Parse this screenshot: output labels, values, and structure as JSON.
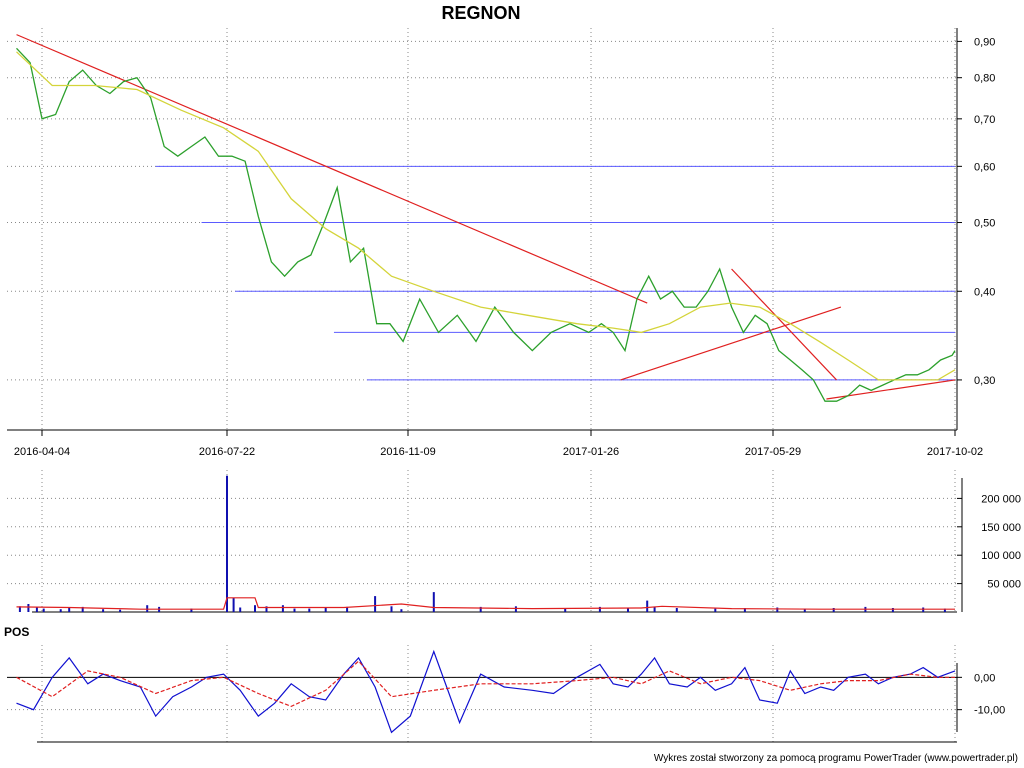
{
  "chart_data": [
    {
      "type": "line",
      "title": "REGNON",
      "scale": "log",
      "x_ticks": [
        "2016-04-04",
        "2016-07-22",
        "2016-11-09",
        "2017-01-26",
        "2017-05-29",
        "2017-10-02"
      ],
      "y_ticks": [
        {
          "value": 0.9,
          "label": "0,90"
        },
        {
          "value": 0.8,
          "label": "0,80"
        },
        {
          "value": 0.7,
          "label": "0,70"
        },
        {
          "value": 0.6,
          "label": "0,60"
        },
        {
          "value": 0.5,
          "label": "0,50"
        },
        {
          "value": 0.4,
          "label": "0,40"
        },
        {
          "value": 0.3,
          "label": "0,30"
        }
      ],
      "ylim": [
        0.255,
        0.94
      ],
      "grid": true,
      "series": [
        {
          "name": "",
          "role": "price",
          "color": "#2ca02c",
          "x": [
            "2016-03-20",
            "2016-03-28",
            "2016-04-04",
            "2016-04-12",
            "2016-04-20",
            "2016-04-28",
            "2016-05-06",
            "2016-05-14",
            "2016-05-22",
            "2016-05-30",
            "2016-06-07",
            "2016-06-15",
            "2016-06-23",
            "2016-07-01",
            "2016-07-09",
            "2016-07-17",
            "2016-07-25",
            "2016-08-02",
            "2016-08-10",
            "2016-08-18",
            "2016-08-26",
            "2016-09-03",
            "2016-09-11",
            "2016-09-19",
            "2016-09-27",
            "2016-10-05",
            "2016-10-13",
            "2016-10-21",
            "2016-10-29",
            "2016-11-06",
            "2016-11-14",
            "2016-11-22",
            "2016-11-30",
            "2016-12-08",
            "2016-12-16",
            "2016-12-24",
            "2017-01-01",
            "2017-01-09",
            "2017-01-17",
            "2017-01-25",
            "2017-02-02",
            "2017-02-10",
            "2017-02-18",
            "2017-02-26",
            "2017-03-06",
            "2017-03-14",
            "2017-03-22",
            "2017-03-30",
            "2017-04-07",
            "2017-04-15",
            "2017-04-23",
            "2017-05-01",
            "2017-05-09",
            "2017-05-17",
            "2017-05-25",
            "2017-06-02",
            "2017-06-10",
            "2017-06-18",
            "2017-06-26",
            "2017-07-04",
            "2017-07-12",
            "2017-07-20",
            "2017-07-28",
            "2017-08-05",
            "2017-08-13",
            "2017-08-21",
            "2017-08-29",
            "2017-09-06",
            "2017-09-14",
            "2017-09-22",
            "2017-09-30",
            "2017-10-02"
          ],
          "values": [
            0.88,
            0.84,
            0.7,
            0.71,
            0.79,
            0.82,
            0.78,
            0.76,
            0.79,
            0.8,
            0.75,
            0.64,
            0.62,
            0.64,
            0.66,
            0.62,
            0.62,
            0.61,
            0.51,
            0.44,
            0.42,
            0.44,
            0.45,
            0.5,
            0.56,
            0.44,
            0.46,
            0.36,
            0.36,
            0.34,
            0.39,
            0.35,
            0.37,
            0.34,
            0.38,
            0.35,
            0.33,
            0.35,
            0.36,
            0.35,
            0.36,
            0.35,
            0.33,
            0.39,
            0.42,
            0.39,
            0.4,
            0.38,
            0.38,
            0.4,
            0.43,
            0.38,
            0.35,
            0.37,
            0.36,
            0.33,
            0.32,
            0.31,
            0.3,
            0.28,
            0.28,
            0.285,
            0.295,
            0.29,
            0.295,
            0.3,
            0.305,
            0.305,
            0.31,
            0.32,
            0.325,
            0.33
          ]
        },
        {
          "name": "",
          "role": "moving-average",
          "color": "#d4d43a",
          "x": [
            "2016-03-20",
            "2016-04-10",
            "2016-05-05",
            "2016-05-30",
            "2016-06-25",
            "2016-07-20",
            "2016-08-10",
            "2016-08-30",
            "2016-09-20",
            "2016-10-10",
            "2016-10-30",
            "2016-11-20",
            "2016-12-10",
            "2016-12-30",
            "2017-01-20",
            "2017-02-10",
            "2017-03-01",
            "2017-03-20",
            "2017-04-10",
            "2017-04-30",
            "2017-05-20",
            "2017-06-10",
            "2017-06-30",
            "2017-07-20",
            "2017-08-10",
            "2017-08-30",
            "2017-09-20",
            "2017-10-02"
          ],
          "values": [
            0.87,
            0.78,
            0.78,
            0.77,
            0.72,
            0.68,
            0.63,
            0.54,
            0.49,
            0.46,
            0.42,
            0.4,
            0.38,
            0.37,
            0.36,
            0.355,
            0.35,
            0.36,
            0.38,
            0.385,
            0.38,
            0.36,
            0.34,
            0.32,
            0.3,
            0.3,
            0.3,
            0.31
          ]
        }
      ],
      "support_lines": [
        {
          "value": 0.6,
          "from": "2016-06-10",
          "to": "2017-10-02"
        },
        {
          "value": 0.5,
          "from": "2016-07-07",
          "to": "2017-10-02"
        },
        {
          "value": 0.4,
          "from": "2016-07-27",
          "to": "2017-10-02"
        },
        {
          "value": 0.35,
          "from": "2016-09-25",
          "to": "2017-10-02"
        },
        {
          "value": 0.3,
          "from": "2016-10-15",
          "to": "2017-10-02"
        }
      ],
      "trend_lines": [
        {
          "from": [
            "2016-03-20",
            0.92
          ],
          "to": [
            "2017-03-05",
            0.385
          ]
        },
        {
          "from": [
            "2017-02-15",
            0.3
          ],
          "to": [
            "2017-07-15",
            0.38
          ]
        },
        {
          "from": [
            "2017-05-01",
            0.43
          ],
          "to": [
            "2017-07-12",
            0.3
          ]
        },
        {
          "from": [
            "2017-07-05",
            0.282
          ],
          "to": [
            "2017-10-02",
            0.3
          ]
        }
      ]
    },
    {
      "type": "bar",
      "role": "volume",
      "y_ticks": [
        {
          "value": 50000,
          "label": "50 000"
        },
        {
          "value": 100000,
          "label": "100 000"
        },
        {
          "value": 150000,
          "label": "150 000"
        },
        {
          "value": 200000,
          "label": "200 000"
        }
      ],
      "ylim": [
        0,
        250000
      ],
      "series": [
        {
          "name": "",
          "color": "#1010b0",
          "x": [
            "2016-03-22",
            "2016-03-27",
            "2016-04-01",
            "2016-04-05",
            "2016-04-15",
            "2016-04-20",
            "2016-04-28",
            "2016-05-10",
            "2016-05-20",
            "2016-06-05",
            "2016-06-12",
            "2016-07-01",
            "2016-07-22",
            "2016-07-26",
            "2016-07-30",
            "2016-08-08",
            "2016-08-15",
            "2016-08-25",
            "2016-09-01",
            "2016-09-10",
            "2016-09-20",
            "2016-10-03",
            "2016-10-20",
            "2016-10-30",
            "2016-11-05",
            "2016-11-20",
            "2016-12-10",
            "2016-12-25",
            "2017-01-15",
            "2017-02-01",
            "2017-02-20",
            "2017-03-05",
            "2017-03-10",
            "2017-03-25",
            "2017-04-20",
            "2017-05-10",
            "2017-06-01",
            "2017-06-20",
            "2017-07-10",
            "2017-08-01",
            "2017-08-20",
            "2017-09-10",
            "2017-09-25"
          ],
          "values": [
            10000,
            14000,
            8000,
            6000,
            5000,
            7000,
            9000,
            5000,
            4000,
            12000,
            9000,
            6000,
            240000,
            25000,
            8000,
            12000,
            10000,
            12000,
            6000,
            6000,
            8000,
            9000,
            28000,
            10000,
            5000,
            35000,
            9000,
            10000,
            7000,
            9000,
            7000,
            20000,
            9000,
            7000,
            6000,
            7000,
            8000,
            6000,
            7000,
            9000,
            7000,
            8000,
            6000
          ]
        },
        {
          "name": "",
          "role": "volume-average",
          "color": "#e02020",
          "x": [
            "2016-03-20",
            "2016-04-20",
            "2016-06-01",
            "2016-07-20",
            "2016-07-22",
            "2016-08-08",
            "2016-08-10",
            "2016-10-01",
            "2016-11-05",
            "2016-11-20",
            "2017-01-01",
            "2017-03-01",
            "2017-03-15",
            "2017-05-01",
            "2017-07-01",
            "2017-10-02"
          ],
          "values": [
            9000,
            8000,
            5000,
            5000,
            25000,
            25000,
            8000,
            8000,
            14000,
            8000,
            6000,
            7000,
            10000,
            6000,
            5000,
            5000
          ]
        }
      ]
    },
    {
      "type": "line",
      "role": "oscillator",
      "panel_label": "POS",
      "y_ticks": [
        {
          "value": 0,
          "label": "0,00"
        },
        {
          "value": -10,
          "label": "-10,00"
        }
      ],
      "ylim": [
        -20,
        10
      ],
      "series": [
        {
          "name": "",
          "color": "#1010d0",
          "x": [
            "2016-03-20",
            "2016-03-30",
            "2016-04-10",
            "2016-04-20",
            "2016-05-01",
            "2016-05-10",
            "2016-05-20",
            "2016-06-01",
            "2016-06-10",
            "2016-06-20",
            "2016-07-01",
            "2016-07-10",
            "2016-07-20",
            "2016-07-30",
            "2016-08-10",
            "2016-08-20",
            "2016-08-30",
            "2016-09-10",
            "2016-09-20",
            "2016-10-01",
            "2016-10-10",
            "2016-10-20",
            "2016-10-30",
            "2016-11-10",
            "2016-11-20",
            "2016-12-01",
            "2016-12-10",
            "2016-12-20",
            "2017-01-01",
            "2017-01-10",
            "2017-01-20",
            "2017-02-01",
            "2017-02-10",
            "2017-02-20",
            "2017-03-01",
            "2017-03-10",
            "2017-03-20",
            "2017-04-01",
            "2017-04-10",
            "2017-04-20",
            "2017-05-01",
            "2017-05-10",
            "2017-05-20",
            "2017-06-01",
            "2017-06-10",
            "2017-06-20",
            "2017-07-01",
            "2017-07-10",
            "2017-07-20",
            "2017-08-01",
            "2017-08-10",
            "2017-08-20",
            "2017-09-01",
            "2017-09-10",
            "2017-09-20",
            "2017-10-02"
          ],
          "values": [
            -8,
            -10,
            0,
            6,
            -2,
            1,
            -1,
            -3,
            -12,
            -6,
            -3,
            0,
            1,
            -4,
            -12,
            -8,
            -2,
            -6,
            -7,
            1,
            6,
            -3,
            -17,
            -12,
            8,
            -14,
            1,
            -3,
            -4,
            -5,
            0,
            4,
            -2,
            -3,
            1,
            6,
            -2,
            -3,
            0,
            -4,
            -2,
            3,
            -7,
            -8,
            2,
            -5,
            -3,
            -4,
            0,
            1,
            -2,
            0,
            1,
            3,
            0,
            2
          ]
        },
        {
          "name": "",
          "color": "#e02020",
          "dashed": true,
          "x": [
            "2016-03-20",
            "2016-04-10",
            "2016-05-01",
            "2016-05-20",
            "2016-06-10",
            "2016-07-01",
            "2016-07-20",
            "2016-08-10",
            "2016-08-30",
            "2016-09-20",
            "2016-10-10",
            "2016-10-30",
            "2016-11-20",
            "2016-12-10",
            "2017-01-01",
            "2017-01-20",
            "2017-02-10",
            "2017-03-01",
            "2017-03-20",
            "2017-04-10",
            "2017-05-01",
            "2017-05-20",
            "2017-06-10",
            "2017-07-01",
            "2017-07-20",
            "2017-08-10",
            "2017-09-01",
            "2017-09-20",
            "2017-10-02"
          ],
          "values": [
            0,
            -6,
            2,
            0,
            -5,
            -1,
            0,
            -5,
            -9,
            -4,
            5,
            -6,
            -4,
            -2,
            -2,
            -1,
            0,
            -2,
            2,
            -2,
            0,
            -1,
            -4,
            -2,
            -1,
            -1,
            1,
            0,
            0
          ]
        }
      ]
    }
  ],
  "footer": "Wykres został stworzony za pomocą programu PowerTrader (www.powertrader.pl)"
}
